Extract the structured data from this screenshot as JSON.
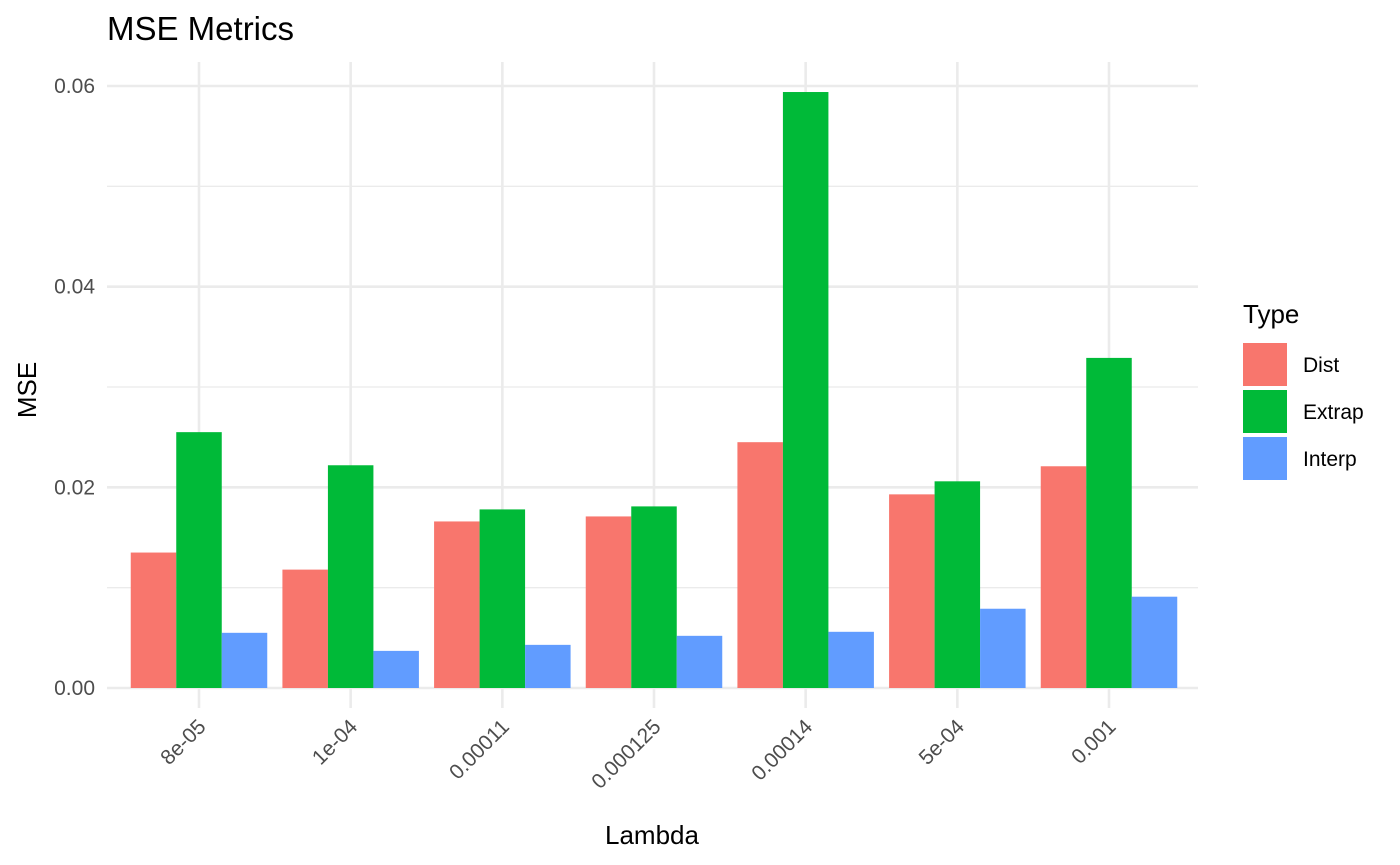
{
  "chart_data": {
    "type": "bar",
    "title": "MSE Metrics",
    "xlabel": "Lambda",
    "ylabel": "MSE",
    "categories": [
      "8e-05",
      "1e-04",
      "0.00011",
      "0.000125",
      "0.00014",
      "5e-04",
      "0.001"
    ],
    "series": [
      {
        "name": "Dist",
        "color": "#F8766D",
        "values": [
          0.0135,
          0.0118,
          0.0166,
          0.0171,
          0.0245,
          0.0193,
          0.0221
        ]
      },
      {
        "name": "Extrap",
        "color": "#00BA38",
        "values": [
          0.0255,
          0.0222,
          0.0178,
          0.0181,
          0.0594,
          0.0206,
          0.0329
        ]
      },
      {
        "name": "Interp",
        "color": "#619CFF",
        "values": [
          0.0055,
          0.0037,
          0.0043,
          0.0052,
          0.0056,
          0.0079,
          0.0091
        ]
      }
    ],
    "ylim": [
      0,
      0.06
    ],
    "yticks": [
      "0.00",
      "0.02",
      "0.04",
      "0.06"
    ],
    "grid": true,
    "legend": {
      "title": "Type",
      "position": "right"
    }
  }
}
